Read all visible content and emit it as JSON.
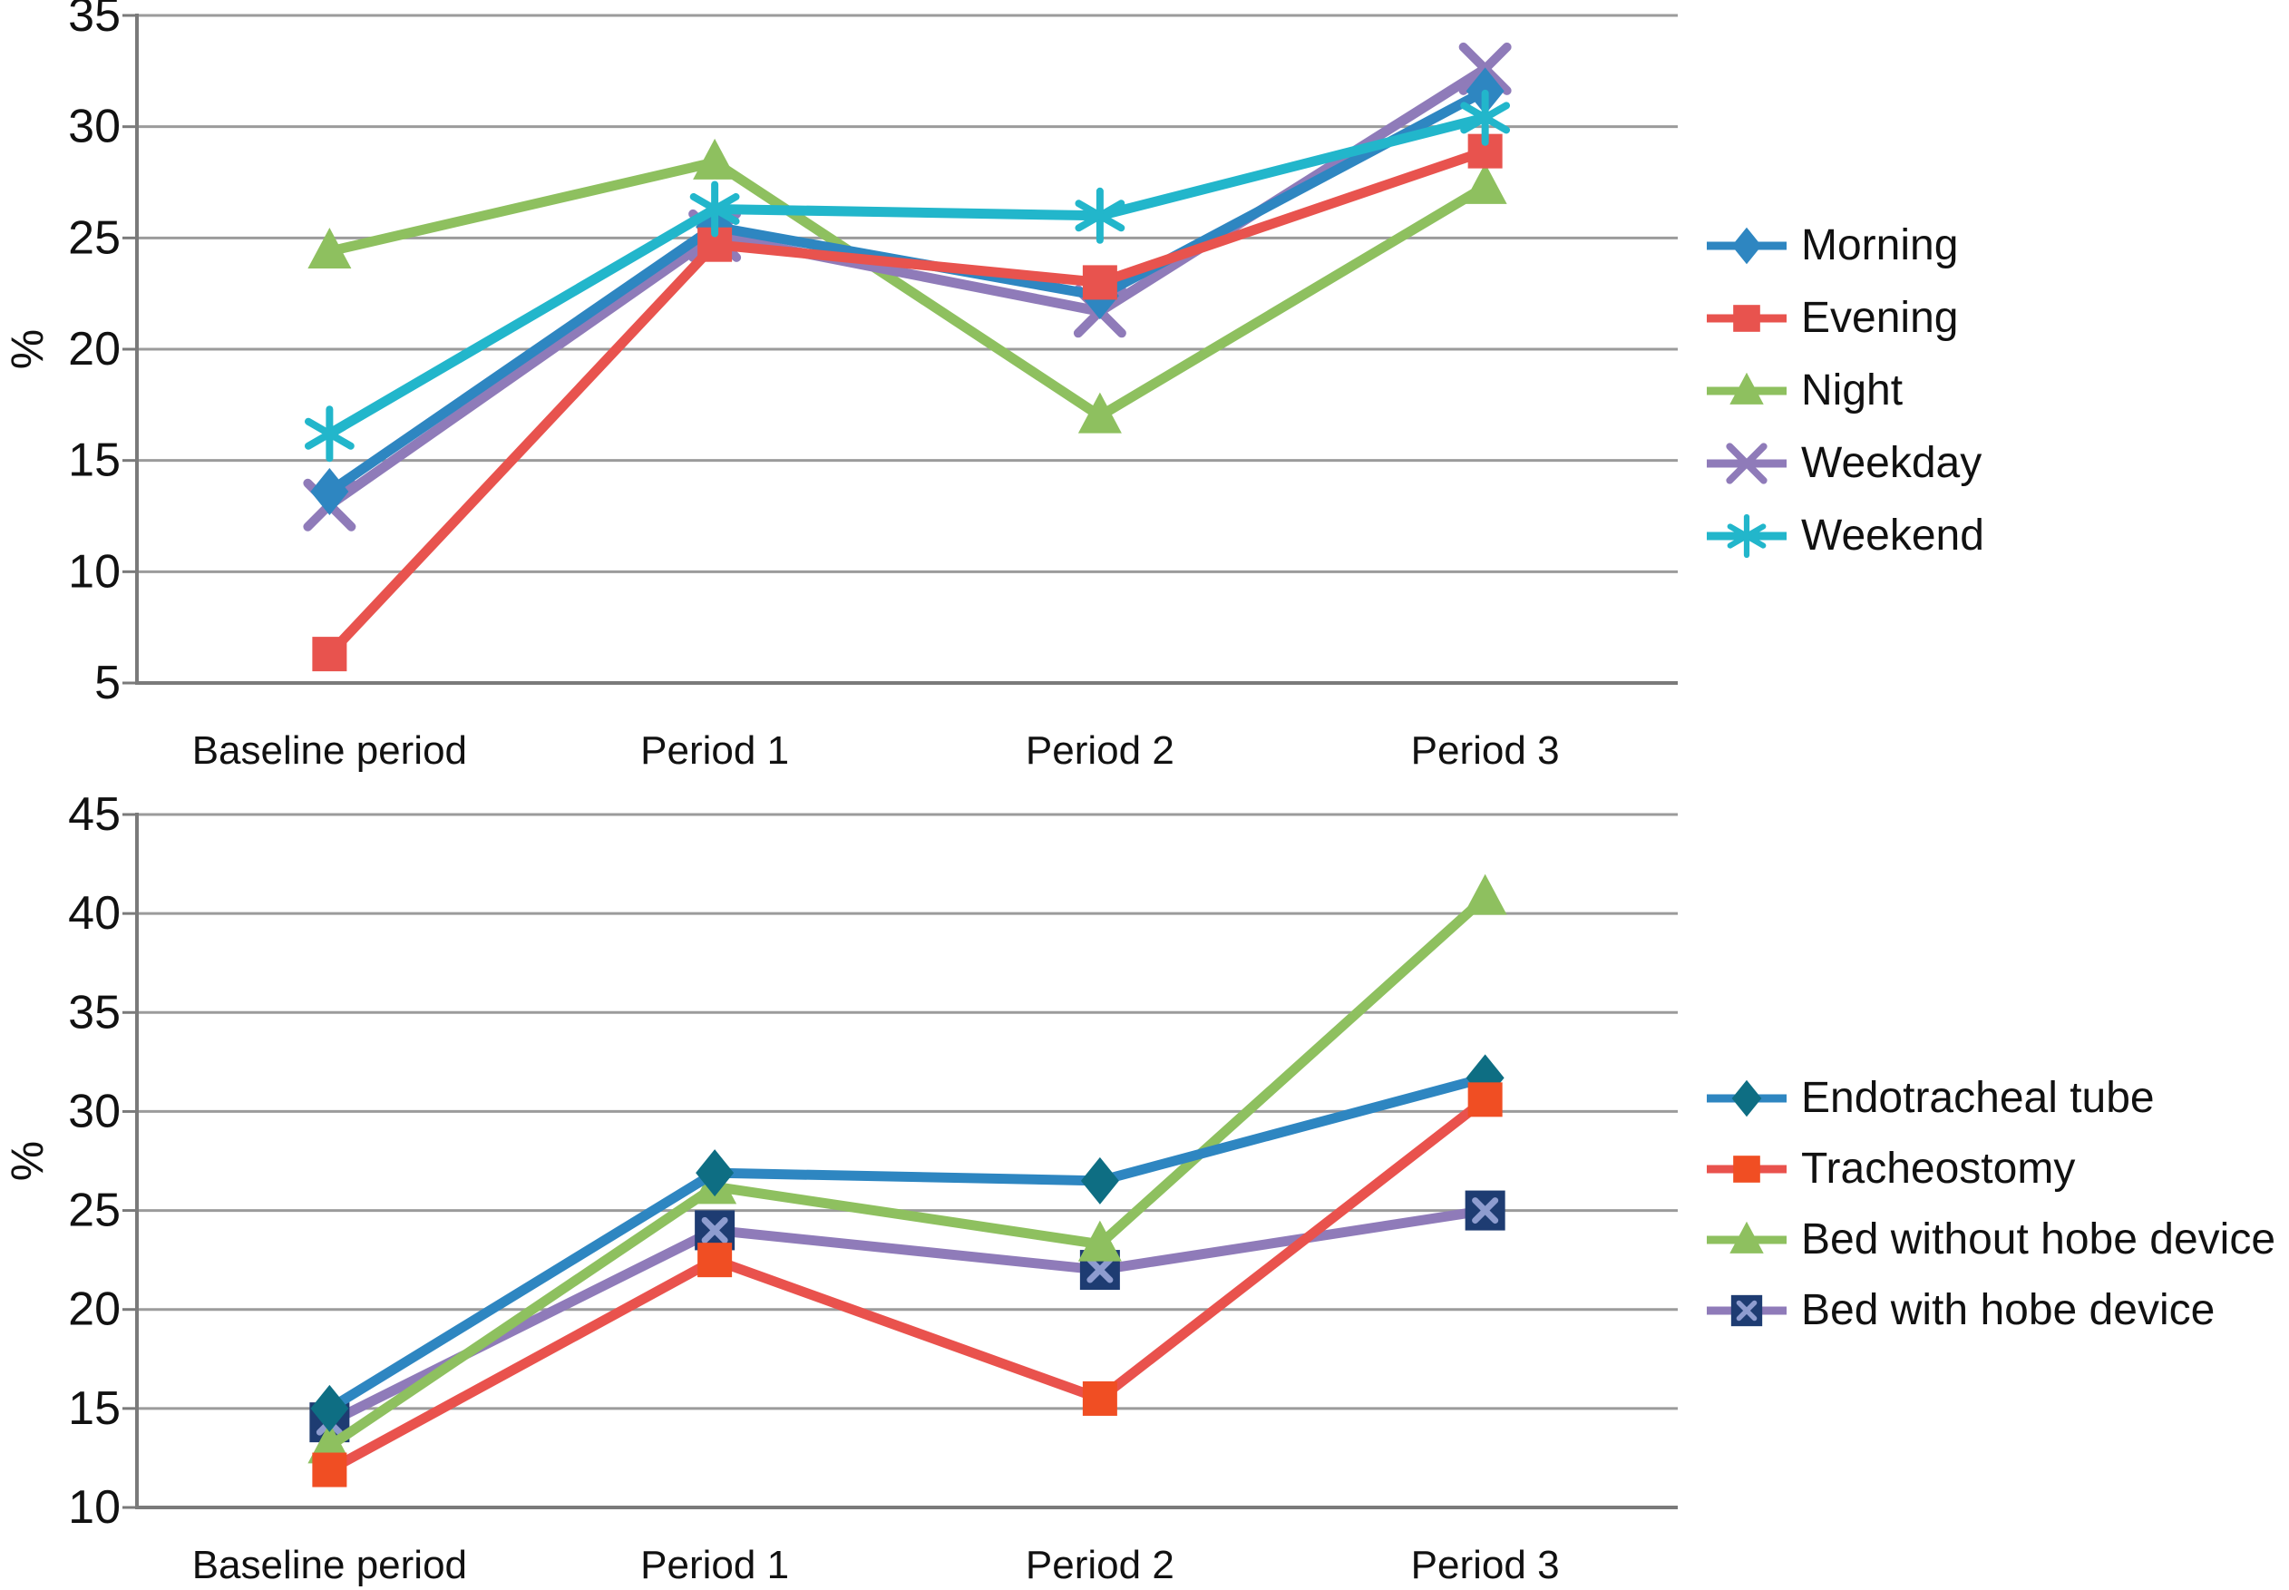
{
  "figure": {
    "background": "#ffffff",
    "text_color": "#111111",
    "gridline_color": "#9B9B9B",
    "axis_color": "#7A7A7A"
  },
  "chart_data": [
    {
      "type": "line",
      "title": "",
      "xlabel": "",
      "ylabel": "%",
      "categories": [
        "Baseline period",
        "Period 1",
        "Period 2",
        "Period 3"
      ],
      "ylim": [
        5,
        35
      ],
      "yticks": [
        5,
        10,
        15,
        20,
        25,
        30,
        35
      ],
      "grid": true,
      "legend_position": "right",
      "series": [
        {
          "name": "Morning",
          "marker": "diamond",
          "color": "#2E86C1",
          "values": [
            13.6,
            25.5,
            22.4,
            31.6
          ]
        },
        {
          "name": "Evening",
          "marker": "square",
          "color": "#E8534E",
          "values": [
            6.3,
            24.7,
            23.0,
            28.9
          ]
        },
        {
          "name": "Night",
          "marker": "triangle",
          "color": "#8EC05F",
          "values": [
            24.4,
            28.4,
            17.0,
            27.3
          ]
        },
        {
          "name": "Weekday",
          "marker": "x",
          "color": "#8F7BB9",
          "values": [
            13.0,
            25.1,
            21.7,
            32.6
          ]
        },
        {
          "name": "Weekend",
          "marker": "asterisk",
          "color": "#22B6CB",
          "values": [
            16.2,
            26.3,
            26.0,
            30.4
          ]
        }
      ]
    },
    {
      "type": "line",
      "title": "",
      "xlabel": "",
      "ylabel": "%",
      "categories": [
        "Baseline period",
        "Period 1",
        "Period 2",
        "Period 3"
      ],
      "ylim": [
        10,
        45
      ],
      "yticks": [
        10,
        15,
        20,
        25,
        30,
        35,
        40,
        45
      ],
      "grid": true,
      "legend_position": "right",
      "series": [
        {
          "name": "Endotracheal tube",
          "marker": "diamond",
          "color": "#2E86C1",
          "marker_color": "#0E6E83",
          "values": [
            15.0,
            26.9,
            26.5,
            31.7
          ]
        },
        {
          "name": "Tracheostomy",
          "marker": "square",
          "color": "#E9524D",
          "marker_color": "#F04E23",
          "values": [
            11.9,
            22.5,
            15.5,
            30.6
          ]
        },
        {
          "name": "Bed without hobe device",
          "marker": "triangle",
          "color": "#8EC05F",
          "values": [
            13.1,
            26.2,
            23.3,
            40.8
          ]
        },
        {
          "name": "Bed with hobe device",
          "marker": "square-x",
          "color": "#8F7BB9",
          "marker_color": "#1E3C72",
          "marker_x_color": "#8E9CCF",
          "values": [
            14.3,
            24.0,
            22.0,
            25.0
          ]
        }
      ]
    }
  ]
}
